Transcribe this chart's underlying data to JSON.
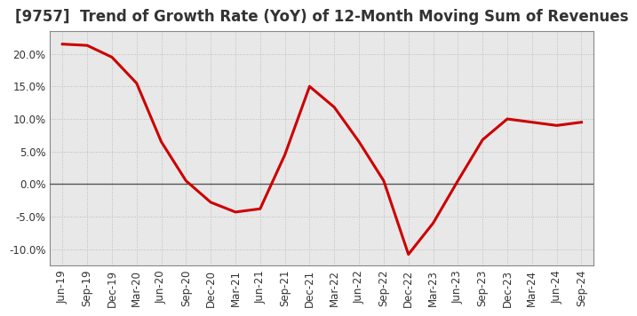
{
  "title": "[9757]  Trend of Growth Rate (YoY) of 12-Month Moving Sum of Revenues",
  "x_labels": [
    "Jun-19",
    "Sep-19",
    "Dec-19",
    "Mar-20",
    "Jun-20",
    "Sep-20",
    "Dec-20",
    "Mar-21",
    "Jun-21",
    "Sep-21",
    "Dec-21",
    "Mar-22",
    "Jun-22",
    "Sep-22",
    "Dec-22",
    "Mar-23",
    "Jun-23",
    "Sep-23",
    "Dec-23",
    "Mar-24",
    "Jun-24",
    "Sep-24"
  ],
  "y_values": [
    0.215,
    0.213,
    0.195,
    0.155,
    0.065,
    0.005,
    -0.028,
    -0.043,
    -0.038,
    0.045,
    0.15,
    0.118,
    0.065,
    0.005,
    -0.108,
    -0.06,
    0.005,
    0.068,
    0.1,
    0.095,
    0.09,
    0.095
  ],
  "line_color": "#cc0000",
  "background_color": "#ffffff",
  "plot_bg_color": "#e8e8e8",
  "grid_color": "#bbbbbb",
  "zero_line_color": "#555555",
  "ylim": [
    -0.125,
    0.235
  ],
  "yticks": [
    -0.1,
    -0.05,
    0.0,
    0.05,
    0.1,
    0.15,
    0.2
  ],
  "title_fontsize": 12,
  "tick_fontsize": 8.5,
  "line_width": 2.2,
  "spine_color": "#888888"
}
